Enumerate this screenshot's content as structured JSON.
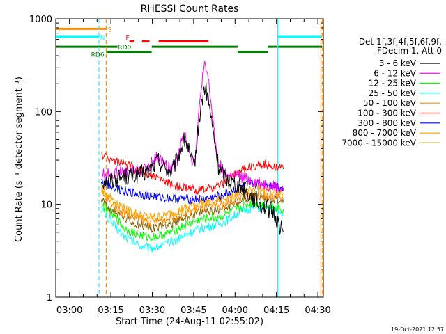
{
  "chart_data": {
    "type": "line",
    "title": "RHESSI Count Rates",
    "xlabel": "Start Time (24-Aug-11 02:55:02)",
    "ylabel": "Count Rate (s⁻¹ detector segment⁻¹)",
    "x_range": [
      "02:55:02",
      "04:32:00"
    ],
    "x_ticks": [
      "03:00",
      "03:15",
      "03:30",
      "03:45",
      "04:00",
      "04:15",
      "04:30"
    ],
    "x_tick_minutes": [
      180,
      195,
      210,
      225,
      240,
      255,
      270
    ],
    "ylim": [
      1,
      1000
    ],
    "yscale": "log",
    "y_ticks": [
      "1",
      "10",
      "100",
      "1000"
    ],
    "y_tick_values": [
      1,
      10,
      100,
      1000
    ],
    "legend": {
      "placement": "right",
      "header": [
        "Det 1f,3f,4f,5f,6f,9f,",
        "FDecim 1, Att 0"
      ],
      "entries": [
        {
          "name": "3 - 6 keV",
          "color": "#000000"
        },
        {
          "name": "6 - 12 keV",
          "color": "#ff00ff"
        },
        {
          "name": "12 - 25 keV",
          "color": "#00ff00"
        },
        {
          "name": "25 - 50 keV",
          "color": "#00ffff"
        },
        {
          "name": "50 - 100 keV",
          "color": "#ff8c00"
        },
        {
          "name": "100 - 300 keV",
          "color": "#ff0000"
        },
        {
          "name": "300 - 800 keV",
          "color": "#0000ff"
        },
        {
          "name": "800 - 7000 keV",
          "color": "#ffa500"
        },
        {
          "name": "7000 - 15000 keV",
          "color": "#8b6508"
        }
      ]
    },
    "series": [
      {
        "name": "3 - 6 keV",
        "color": "#000000",
        "points": [
          [
            191.6,
            18
          ],
          [
            194,
            18
          ],
          [
            197,
            19
          ],
          [
            200,
            20
          ],
          [
            203,
            20
          ],
          [
            206,
            21
          ],
          [
            208,
            22
          ],
          [
            210,
            25
          ],
          [
            212,
            30
          ],
          [
            213,
            28
          ],
          [
            215,
            24
          ],
          [
            217,
            22
          ],
          [
            219,
            30
          ],
          [
            221,
            45
          ],
          [
            222,
            50
          ],
          [
            223,
            40
          ],
          [
            224,
            30
          ],
          [
            225,
            25
          ],
          [
            226,
            40
          ],
          [
            227,
            80
          ],
          [
            228,
            130
          ],
          [
            229,
            180
          ],
          [
            230,
            150
          ],
          [
            231,
            100
          ],
          [
            232,
            60
          ],
          [
            233,
            40
          ],
          [
            234,
            25
          ],
          [
            236,
            20
          ],
          [
            238,
            18
          ],
          [
            240,
            17
          ],
          [
            243,
            15
          ],
          [
            246,
            12
          ],
          [
            249,
            10
          ],
          [
            252,
            9
          ],
          [
            254,
            8
          ],
          [
            256,
            6
          ],
          [
            257.5,
            5
          ]
        ]
      },
      {
        "name": "6 - 12 keV",
        "color": "#ff00ff",
        "points": [
          [
            191.6,
            21
          ],
          [
            194,
            21
          ],
          [
            197,
            22
          ],
          [
            200,
            22
          ],
          [
            203,
            23
          ],
          [
            206,
            23
          ],
          [
            208,
            24
          ],
          [
            210,
            28
          ],
          [
            212,
            33
          ],
          [
            213,
            30
          ],
          [
            215,
            26
          ],
          [
            217,
            24
          ],
          [
            219,
            32
          ],
          [
            221,
            50
          ],
          [
            222,
            55
          ],
          [
            223,
            45
          ],
          [
            224,
            33
          ],
          [
            225,
            28
          ],
          [
            226,
            45
          ],
          [
            227,
            100
          ],
          [
            228,
            220
          ],
          [
            229,
            300
          ],
          [
            230,
            250
          ],
          [
            231,
            150
          ],
          [
            232,
            80
          ],
          [
            233,
            45
          ],
          [
            234,
            28
          ],
          [
            236,
            22
          ],
          [
            238,
            20
          ],
          [
            240,
            20
          ],
          [
            243,
            19
          ],
          [
            246,
            18
          ],
          [
            249,
            17
          ],
          [
            252,
            16
          ],
          [
            254,
            15.5
          ],
          [
            256,
            15
          ],
          [
            257.5,
            14
          ]
        ]
      },
      {
        "name": "12 - 25 keV",
        "color": "#00ff00",
        "points": [
          [
            191.6,
            10
          ],
          [
            194,
            8.5
          ],
          [
            197,
            7
          ],
          [
            200,
            5.5
          ],
          [
            203,
            5
          ],
          [
            206,
            4.6
          ],
          [
            209,
            4.4
          ],
          [
            212,
            4.5
          ],
          [
            215,
            4.8
          ],
          [
            218,
            5.2
          ],
          [
            221,
            5.8
          ],
          [
            224,
            6.3
          ],
          [
            227,
            6.8
          ],
          [
            230,
            7
          ],
          [
            233,
            7.2
          ],
          [
            236,
            7.6
          ],
          [
            239,
            8.4
          ],
          [
            242,
            9.3
          ],
          [
            245,
            10
          ],
          [
            248,
            10.2
          ],
          [
            251,
            9.8
          ],
          [
            254,
            9.5
          ],
          [
            256,
            9.2
          ],
          [
            257.5,
            8.8
          ]
        ]
      },
      {
        "name": "25 - 50 keV",
        "color": "#00ffff",
        "points": [
          [
            191.6,
            9
          ],
          [
            194,
            7
          ],
          [
            197,
            5.6
          ],
          [
            200,
            4.5
          ],
          [
            203,
            4
          ],
          [
            206,
            3.6
          ],
          [
            209,
            3.4
          ],
          [
            212,
            3.5
          ],
          [
            215,
            3.7
          ],
          [
            218,
            4
          ],
          [
            221,
            4.5
          ],
          [
            224,
            5
          ],
          [
            227,
            5.4
          ],
          [
            230,
            5.7
          ],
          [
            233,
            6
          ],
          [
            236,
            6.5
          ],
          [
            239,
            7.3
          ],
          [
            242,
            8.3
          ],
          [
            245,
            9
          ],
          [
            248,
            9.3
          ],
          [
            251,
            9
          ],
          [
            254,
            8.6
          ],
          [
            256,
            8.3
          ],
          [
            257.5,
            8
          ]
        ]
      },
      {
        "name": "50 - 100 keV",
        "color": "#ff8c00",
        "points": [
          [
            191.6,
            13
          ],
          [
            194,
            11
          ],
          [
            197,
            9.5
          ],
          [
            200,
            8
          ],
          [
            203,
            7.3
          ],
          [
            206,
            6.8
          ],
          [
            209,
            6.5
          ],
          [
            212,
            6.6
          ],
          [
            215,
            6.9
          ],
          [
            218,
            7.3
          ],
          [
            221,
            7.9
          ],
          [
            224,
            8.5
          ],
          [
            227,
            9
          ],
          [
            230,
            9.3
          ],
          [
            233,
            9.6
          ],
          [
            236,
            10
          ],
          [
            239,
            10.8
          ],
          [
            242,
            11.8
          ],
          [
            245,
            12.6
          ],
          [
            248,
            12.9
          ],
          [
            251,
            12.5
          ],
          [
            254,
            12
          ],
          [
            256,
            11.7
          ],
          [
            257.5,
            11.3
          ]
        ]
      },
      {
        "name": "100 - 300 keV",
        "color": "#ff0000",
        "points": [
          [
            191.6,
            34
          ],
          [
            194,
            32
          ],
          [
            197,
            29
          ],
          [
            200,
            27
          ],
          [
            203,
            25
          ],
          [
            206,
            23
          ],
          [
            209,
            21
          ],
          [
            212,
            19
          ],
          [
            215,
            17.5
          ],
          [
            218,
            16
          ],
          [
            221,
            15
          ],
          [
            224,
            14.5
          ],
          [
            227,
            14.3
          ],
          [
            230,
            14.5
          ],
          [
            233,
            15.5
          ],
          [
            236,
            17
          ],
          [
            239,
            20
          ],
          [
            242,
            23
          ],
          [
            245,
            25
          ],
          [
            248,
            26.5
          ],
          [
            251,
            27
          ],
          [
            254,
            26
          ],
          [
            256,
            25
          ],
          [
            257.5,
            24
          ]
        ]
      },
      {
        "name": "300 - 800 keV",
        "color": "#0000ff",
        "points": [
          [
            191.6,
            18
          ],
          [
            194,
            16.5
          ],
          [
            197,
            15
          ],
          [
            200,
            14
          ],
          [
            203,
            13.3
          ],
          [
            206,
            12.8
          ],
          [
            209,
            12.4
          ],
          [
            212,
            12
          ],
          [
            215,
            11.7
          ],
          [
            218,
            11.5
          ],
          [
            221,
            11.4
          ],
          [
            224,
            11.3
          ],
          [
            227,
            11.3
          ],
          [
            230,
            11.5
          ],
          [
            233,
            12
          ],
          [
            236,
            12.8
          ],
          [
            239,
            14
          ],
          [
            242,
            15.3
          ],
          [
            245,
            16.3
          ],
          [
            248,
            16.8
          ],
          [
            251,
            16.5
          ],
          [
            254,
            16
          ],
          [
            256,
            15.6
          ],
          [
            257.5,
            15
          ]
        ]
      },
      {
        "name": "800 - 7000 keV",
        "color": "#ffa500",
        "points": [
          [
            191.6,
            15
          ],
          [
            194,
            12.5
          ],
          [
            197,
            10.5
          ],
          [
            200,
            9
          ],
          [
            203,
            8.2
          ],
          [
            206,
            7.6
          ],
          [
            209,
            7.2
          ],
          [
            212,
            7.3
          ],
          [
            215,
            7.7
          ],
          [
            218,
            8.2
          ],
          [
            221,
            8.9
          ],
          [
            224,
            9.6
          ],
          [
            227,
            10.2
          ],
          [
            230,
            10.6
          ],
          [
            233,
            11
          ],
          [
            236,
            11.5
          ],
          [
            239,
            12.5
          ],
          [
            242,
            13.6
          ],
          [
            245,
            14.5
          ],
          [
            248,
            14.8
          ],
          [
            251,
            14.4
          ],
          [
            254,
            13.8
          ],
          [
            256,
            13.4
          ],
          [
            257.5,
            13
          ]
        ]
      },
      {
        "name": "7000 - 15000 keV",
        "color": "#8b6508",
        "points": [
          [
            191.6,
            11
          ],
          [
            194,
            9.3
          ],
          [
            197,
            8
          ],
          [
            200,
            6.9
          ],
          [
            203,
            6.3
          ],
          [
            206,
            5.9
          ],
          [
            209,
            5.6
          ],
          [
            212,
            5.7
          ],
          [
            215,
            6
          ],
          [
            218,
            6.4
          ],
          [
            221,
            7
          ],
          [
            224,
            7.6
          ],
          [
            227,
            8.1
          ],
          [
            230,
            8.4
          ],
          [
            233,
            8.7
          ],
          [
            236,
            9.2
          ],
          [
            239,
            10
          ],
          [
            242,
            11
          ],
          [
            245,
            11.8
          ],
          [
            248,
            12.1
          ],
          [
            251,
            11.8
          ],
          [
            254,
            11.3
          ],
          [
            256,
            11
          ],
          [
            257.5,
            10.7
          ]
        ]
      }
    ],
    "flag_bars": [
      {
        "label": "S",
        "color": "#ff8c00",
        "level": 780,
        "segments": [
          [
            175,
            193.3
          ]
        ]
      },
      {
        "label": "N",
        "color": "#00ffff",
        "level": 640,
        "segments": [
          [
            175,
            190.7
          ],
          [
            255.5,
            271.5
          ]
        ]
      },
      {
        "label": "F",
        "color": "#ff0000",
        "level": 570,
        "segments": [
          [
            201.7,
            203.5
          ],
          [
            206.3,
            209
          ],
          [
            212.3,
            230.4
          ]
        ]
      },
      {
        "label": "RD0",
        "color": "#008000",
        "level": 500,
        "segments": [
          [
            175,
            197.4
          ],
          [
            209.8,
            241
          ],
          [
            251.8,
            271.5
          ]
        ]
      },
      {
        "label": "RD6",
        "color": "#008000",
        "level": 440,
        "segments": [
          [
            193.3,
            209.8
          ],
          [
            241,
            251.8
          ]
        ]
      }
    ],
    "vertical_markers": [
      {
        "x": 175,
        "color": "#00ffff",
        "style": "solid"
      },
      {
        "x": 190.7,
        "color": "#00ffff",
        "style": "dashed"
      },
      {
        "x": 193.3,
        "color": "#ff8c00",
        "style": "dashed"
      },
      {
        "x": 255.5,
        "color": "#00ffff",
        "style": "solid"
      },
      {
        "x": 271.1,
        "color": "#ff8c00",
        "style": "solid"
      },
      {
        "x": 271.7,
        "color": "#ff8c00",
        "style": "dashed"
      }
    ]
  },
  "footer": {
    "timestamp": "19-Oct-2021 12:57"
  }
}
